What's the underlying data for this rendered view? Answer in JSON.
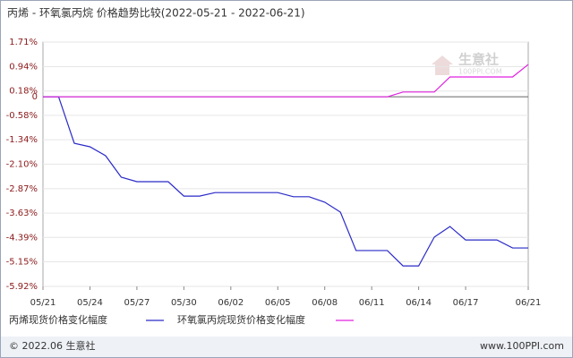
{
  "chart_data": {
    "type": "line",
    "title": "丙烯 - 环氧氯丙烷 价格趋势比较(2022-05-21 - 2022-06-21)",
    "watermark": "生意社",
    "watermark_url": "100PPI.COM",
    "categories": [
      "05/21",
      null,
      null,
      "05/24",
      null,
      null,
      "05/27",
      null,
      null,
      "05/30",
      null,
      null,
      "06/02",
      null,
      null,
      "06/05",
      null,
      null,
      "06/08",
      null,
      null,
      "06/11",
      null,
      null,
      "06/14",
      null,
      null,
      "06/17",
      null,
      null,
      null,
      "06/21"
    ],
    "series": [
      {
        "name": "丙烯现货价格变化幅度",
        "color": "#2a2ac8",
        "values": [
          0,
          0,
          -1.45,
          -1.56,
          -1.84,
          -2.51,
          -2.65,
          -2.65,
          -2.65,
          -3.1,
          -3.1,
          -2.99,
          -2.99,
          -2.99,
          -2.99,
          -2.99,
          -3.12,
          -3.12,
          -3.29,
          -3.6,
          -4.8,
          -4.8,
          -4.8,
          -5.28,
          -5.28,
          -4.38,
          -4.05,
          -4.47,
          -4.47,
          -4.47,
          -4.72,
          -4.72
        ]
      },
      {
        "name": "环氧氯丙烷现货价格变化幅度",
        "color": "#e020e0",
        "values": [
          0,
          0,
          0,
          0,
          0,
          0,
          0,
          0,
          0,
          0,
          0,
          0,
          0,
          0,
          0,
          0,
          0,
          0,
          0,
          0,
          0,
          0,
          0,
          0.15,
          0.15,
          0.15,
          0.62,
          0.62,
          0.62,
          0.62,
          0.62,
          1.01
        ]
      }
    ],
    "ylim": [
      -5.92,
      1.71
    ],
    "yticks": [
      {
        "value": 1.71,
        "label": "1.71%"
      },
      {
        "value": 0.94,
        "label": "0.94%"
      },
      {
        "value": 0.18,
        "label": "0.18%"
      },
      0,
      {
        "value": -0.58,
        "label": "-0.58%"
      },
      {
        "value": -1.34,
        "label": "-1.34%"
      },
      {
        "value": -2.1,
        "label": "-2.10%"
      },
      {
        "value": -2.87,
        "label": "-2.87%"
      },
      {
        "value": -3.63,
        "label": "-3.63%"
      },
      {
        "value": -4.39,
        "label": "-4.39%"
      },
      {
        "value": -5.15,
        "label": "-5.15%"
      },
      {
        "value": -5.92,
        "label": "-5.92%"
      }
    ],
    "grid": true
  },
  "footer": {
    "left": "© 2022.06 生意社",
    "right": "www.100PPI.com"
  }
}
